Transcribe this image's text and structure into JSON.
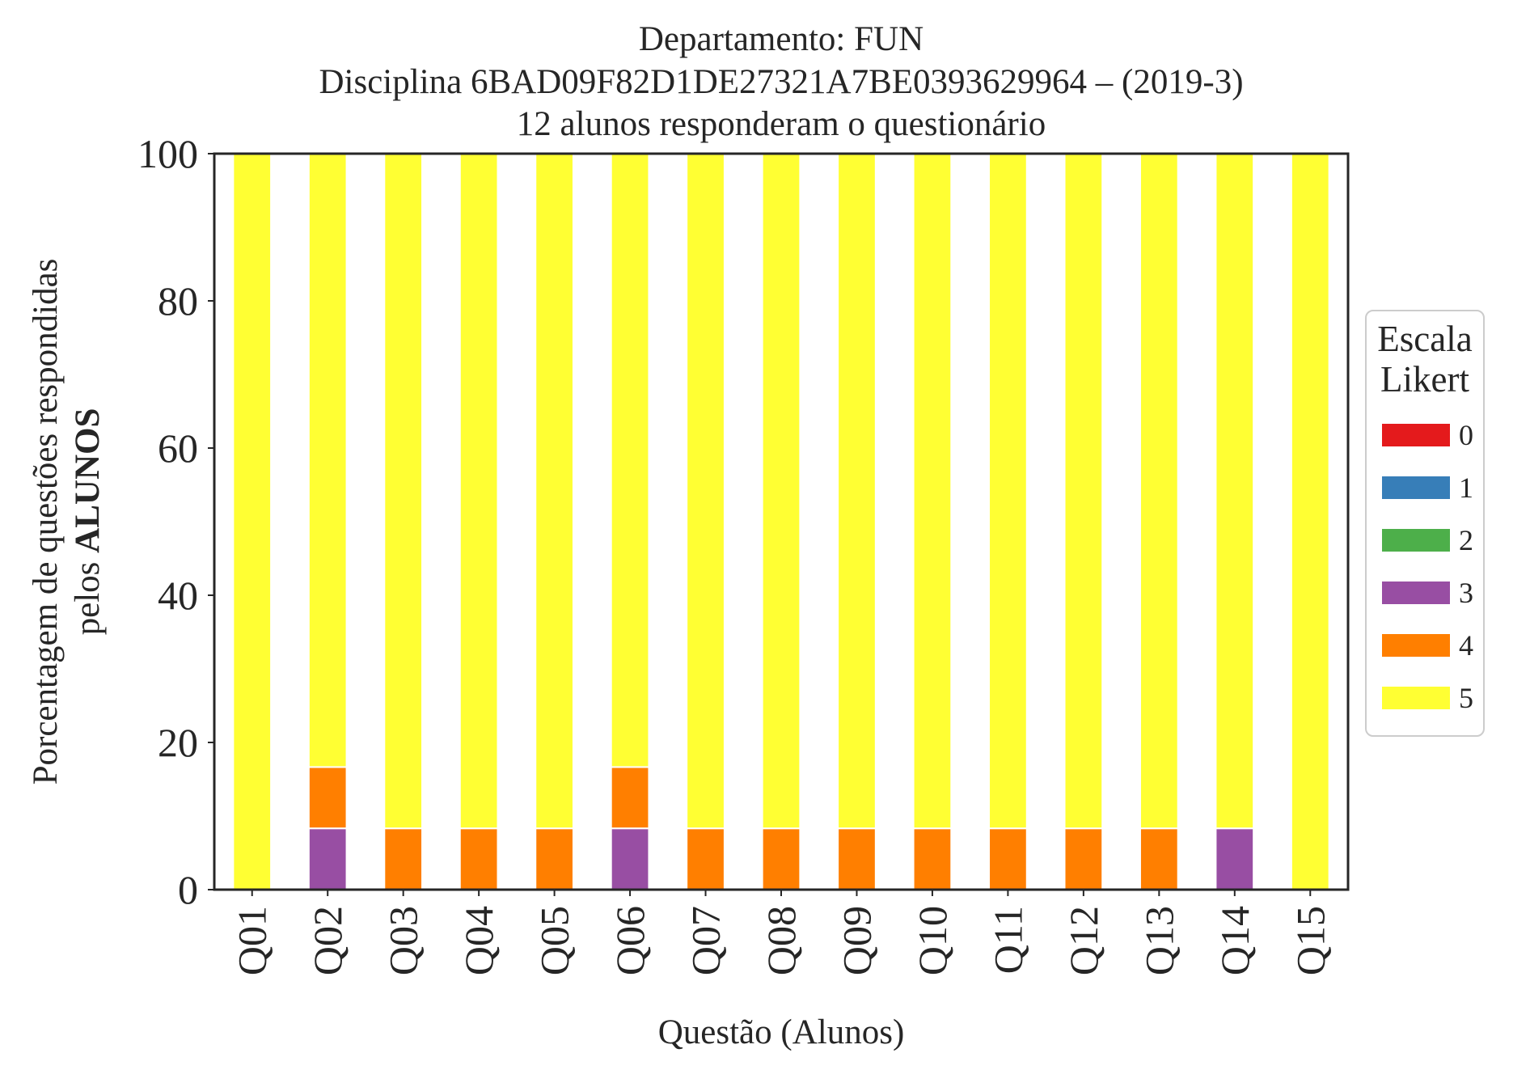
{
  "chart_data": {
    "type": "bar",
    "stacked": true,
    "title": [
      "Departamento: FUN",
      "Disciplina 6BAD09F82D1DE27321A7BE0393629964 – (2019-3)",
      "12 alunos responderam o questionário"
    ],
    "xlabel": "Questão (Alunos)",
    "ylabel_line1": "Porcentagem de questões respondidas",
    "ylabel_line2_prefix": "pelos ",
    "ylabel_line2_bold": "ALUNOS",
    "ylim": [
      0,
      100
    ],
    "yticks": [
      0,
      20,
      40,
      60,
      80,
      100
    ],
    "categories": [
      "Q01",
      "Q02",
      "Q03",
      "Q04",
      "Q05",
      "Q06",
      "Q07",
      "Q08",
      "Q09",
      "Q10",
      "Q11",
      "Q12",
      "Q13",
      "Q14",
      "Q15"
    ],
    "legend_title": [
      "Escala",
      "Likert"
    ],
    "legend_position": "right",
    "grid": false,
    "series": [
      {
        "name": "0",
        "color": "#e41a1c",
        "values": [
          0,
          0,
          0,
          0,
          0,
          0,
          0,
          0,
          0,
          0,
          0,
          0,
          0,
          0,
          0
        ]
      },
      {
        "name": "1",
        "color": "#377eb8",
        "values": [
          0,
          0,
          0,
          0,
          0,
          0,
          0,
          0,
          0,
          0,
          0,
          0,
          0,
          0,
          0
        ]
      },
      {
        "name": "2",
        "color": "#4daf4a",
        "values": [
          0,
          0,
          0,
          0,
          0,
          0,
          0,
          0,
          0,
          0,
          0,
          0,
          0,
          0,
          0
        ]
      },
      {
        "name": "3",
        "color": "#984ea3",
        "values": [
          0,
          8.33,
          0,
          0,
          0,
          8.33,
          0,
          0,
          0,
          0,
          0,
          0,
          0,
          8.33,
          0
        ]
      },
      {
        "name": "4",
        "color": "#ff7f00",
        "values": [
          0,
          8.33,
          8.33,
          8.33,
          8.33,
          8.33,
          8.33,
          8.33,
          8.33,
          8.33,
          8.33,
          8.33,
          8.33,
          0,
          0
        ]
      },
      {
        "name": "5",
        "color": "#ffff33",
        "values": [
          100,
          83.33,
          91.67,
          91.67,
          91.67,
          83.33,
          91.67,
          91.67,
          91.67,
          91.67,
          91.67,
          91.67,
          91.67,
          91.67,
          100
        ]
      }
    ]
  }
}
